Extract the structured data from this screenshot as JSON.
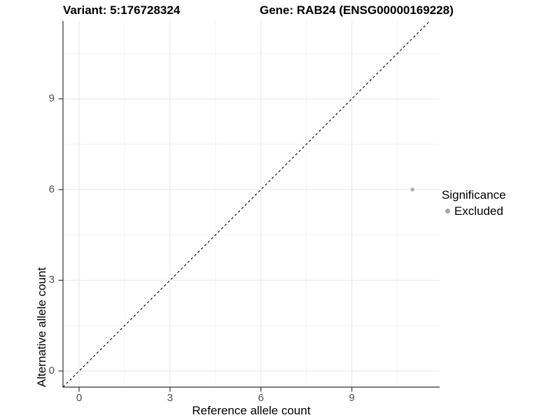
{
  "chart_data": {
    "type": "scatter",
    "title_variant": "Variant: 5:176728324",
    "title_gene": "Gene: RAB24 (ENSG00000169228)",
    "xlabel": "Reference allele count",
    "ylabel": "Alternative allele count",
    "xlim": [
      -0.531,
      11.894
    ],
    "ylim": [
      -0.532,
      11.574
    ],
    "x_ticks": [
      0,
      3,
      6,
      9
    ],
    "y_ticks": [
      0,
      3,
      6,
      9
    ],
    "x_minor_gridlines": [
      1.5,
      4.5,
      7.5,
      10.5
    ],
    "y_minor_gridlines": [
      1.5,
      4.5,
      7.5,
      10.5
    ],
    "identity_line": {
      "style": "dashed",
      "x1": -0.531,
      "y1": -0.531,
      "x2": 11.574,
      "y2": 11.574
    },
    "series": [
      {
        "name": "Excluded",
        "color": "#ABABAB",
        "point_radius": 2.6,
        "points": [
          {
            "x": 11,
            "y": 6
          }
        ]
      }
    ],
    "legend": {
      "position": "right",
      "title": "Significance",
      "items": [
        {
          "label": "Excluded",
          "color": "#A6A6A6"
        }
      ]
    },
    "grid": {
      "major_color": "#E6E6E6",
      "minor_color": "#F2F2F2"
    },
    "colors": {
      "axis_line": "#333333",
      "tick_label": "#4D4D4D",
      "identity_line": "#000000",
      "background": "#FFFFFF"
    }
  }
}
